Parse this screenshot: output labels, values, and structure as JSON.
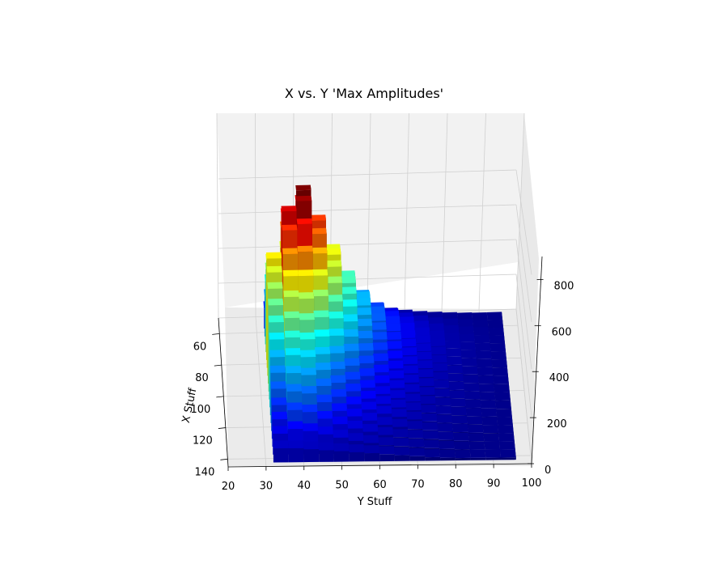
{
  "chart_data": {
    "type": "bar3d",
    "title": "X vs. Y 'Max Amplitudes'",
    "xlabel": "Y Stuff",
    "ylabel": "X Stuff",
    "zlabel": "",
    "y_stuff_ticks": [
      "20",
      "30",
      "40",
      "50",
      "60",
      "70",
      "80",
      "90",
      "100"
    ],
    "x_stuff_ticks": [
      "60",
      "80",
      "100",
      "120",
      "140"
    ],
    "z_ticks": [
      "0",
      "200",
      "400",
      "600",
      "800"
    ],
    "y_stuff_range": [
      20,
      100
    ],
    "x_stuff_range": [
      50,
      145
    ],
    "z_range": [
      0,
      900
    ],
    "colormap": "jet",
    "grid": true,
    "y_stuff_values": [
      34,
      38,
      42,
      46,
      50,
      54,
      58,
      62,
      66,
      70,
      74,
      78,
      82,
      86,
      90,
      94
    ],
    "x_stuff_values": [
      140,
      135,
      130,
      125,
      120,
      115,
      110,
      105,
      100,
      95,
      90,
      85,
      80,
      75,
      70,
      65,
      60,
      55
    ],
    "amplitudes": [
      [
        60,
        60,
        55,
        50,
        45,
        40,
        35,
        30,
        25,
        20,
        15,
        12,
        10,
        10,
        10,
        10
      ],
      [
        90,
        110,
        100,
        85,
        70,
        55,
        45,
        35,
        30,
        25,
        20,
        15,
        12,
        10,
        10,
        10
      ],
      [
        120,
        160,
        150,
        120,
        95,
        75,
        60,
        45,
        35,
        30,
        25,
        20,
        15,
        12,
        10,
        10
      ],
      [
        150,
        210,
        200,
        160,
        120,
        95,
        75,
        55,
        45,
        35,
        28,
        22,
        18,
        14,
        12,
        10
      ],
      [
        190,
        260,
        250,
        200,
        150,
        115,
        90,
        70,
        55,
        42,
        32,
        25,
        20,
        16,
        12,
        10
      ],
      [
        230,
        310,
        300,
        240,
        180,
        140,
        105,
        80,
        62,
        48,
        36,
        28,
        22,
        17,
        13,
        10
      ],
      [
        270,
        360,
        350,
        280,
        210,
        160,
        120,
        90,
        70,
        52,
        40,
        30,
        24,
        18,
        14,
        11
      ],
      [
        320,
        420,
        410,
        330,
        250,
        190,
        140,
        105,
        80,
        60,
        45,
        34,
        26,
        20,
        15,
        12
      ],
      [
        370,
        490,
        480,
        390,
        300,
        225,
        165,
        120,
        90,
        68,
        50,
        38,
        28,
        21,
        16,
        12
      ],
      [
        420,
        560,
        560,
        460,
        350,
        260,
        190,
        138,
        100,
        75,
        55,
        40,
        30,
        22,
        17,
        13
      ],
      [
        470,
        640,
        650,
        530,
        400,
        300,
        215,
        155,
        112,
        82,
        60,
        44,
        32,
        24,
        18,
        13
      ],
      [
        520,
        730,
        760,
        610,
        460,
        340,
        240,
        170,
        122,
        88,
        64,
        46,
        34,
        25,
        18,
        14
      ],
      [
        560,
        800,
        850,
        680,
        510,
        370,
        260,
        182,
        130,
        93,
        67,
        48,
        35,
        26,
        19,
        14
      ],
      [
        520,
        760,
        880,
        720,
        540,
        390,
        272,
        190,
        135,
        96,
        69,
        50,
        36,
        26,
        19,
        14
      ],
      [
        440,
        660,
        800,
        690,
        530,
        385,
        270,
        188,
        134,
        95,
        68,
        49,
        35,
        26,
        19,
        14
      ],
      [
        340,
        520,
        640,
        580,
        460,
        340,
        240,
        168,
        120,
        86,
        62,
        45,
        33,
        24,
        18,
        13
      ],
      [
        220,
        340,
        430,
        400,
        330,
        250,
        180,
        128,
        92,
        66,
        48,
        35,
        26,
        19,
        14,
        11
      ],
      [
        110,
        170,
        220,
        210,
        180,
        140,
        100,
        72,
        52,
        38,
        28,
        21,
        16,
        12,
        10,
        10
      ]
    ]
  }
}
